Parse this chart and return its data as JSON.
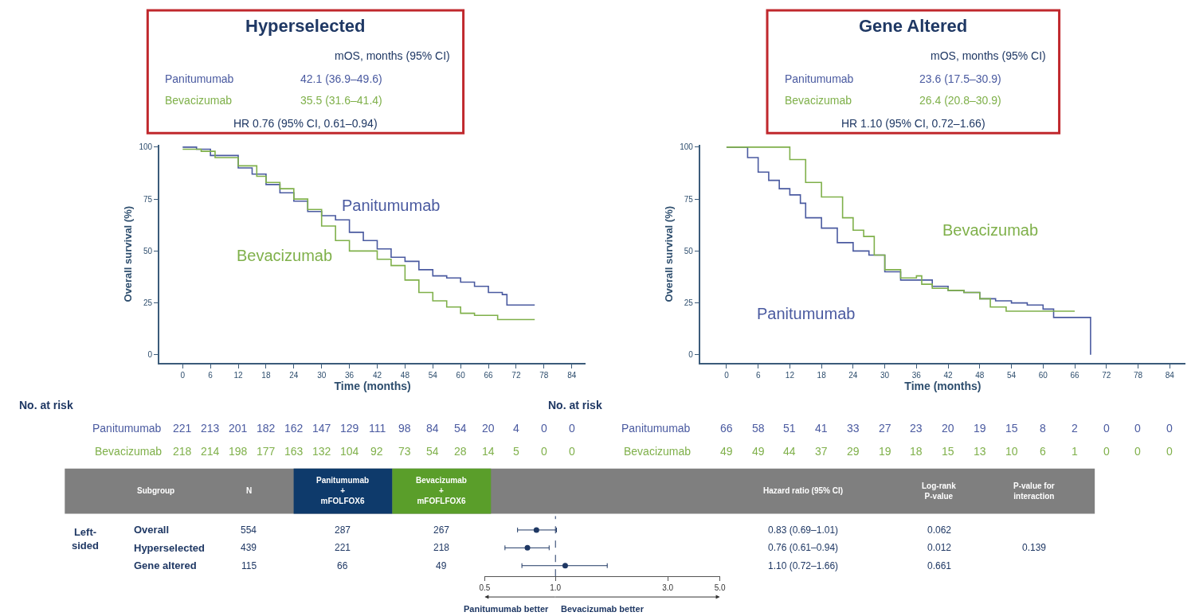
{
  "chart_data": [
    {
      "type": "step",
      "title": "Hyperselected",
      "xlabel": "Time (months)",
      "ylabel": "Overall survival (%)",
      "xlim": [
        -5,
        87
      ],
      "ylim": [
        -4,
        101
      ],
      "xticks": [
        0,
        6,
        12,
        18,
        24,
        30,
        36,
        42,
        48,
        54,
        60,
        66,
        72,
        78,
        84
      ],
      "yticks": [
        0,
        25,
        50,
        75,
        100
      ],
      "series": [
        {
          "name": "Panitumumab",
          "color": "#4a5aa0",
          "x": [
            0,
            3,
            6,
            12,
            15,
            18,
            21,
            24,
            27,
            30,
            33,
            36,
            39,
            42,
            45,
            48,
            51,
            54,
            57,
            60,
            63,
            66,
            69,
            70,
            76
          ],
          "values": [
            100,
            99,
            96,
            90,
            87,
            82,
            78,
            74,
            69,
            67,
            65,
            59,
            55,
            51,
            47,
            45,
            41,
            38,
            37,
            35,
            33,
            30,
            29,
            24,
            24
          ]
        },
        {
          "name": "Bevacizumab",
          "color": "#7fb04a",
          "x": [
            0,
            4,
            7,
            12,
            16,
            18,
            21,
            24,
            27,
            30,
            33,
            36,
            42,
            45,
            48,
            51,
            54,
            57,
            60,
            63,
            66,
            68,
            76
          ],
          "values": [
            99,
            98,
            95,
            91,
            86,
            83,
            80,
            75,
            70,
            62,
            55,
            50,
            46,
            43,
            36,
            30,
            26,
            23,
            20,
            19,
            19,
            17,
            17
          ]
        }
      ],
      "annotations": [
        "mOS, months (95% CI)",
        "Panitumumab",
        "42.1 (36.9–49.6)",
        "Bevacizumab",
        "35.5 (31.6–41.4)",
        "HR 0.76 (95% CI, 0.61–0.94)",
        "No. at risk",
        "Panitumumab",
        "221",
        "213",
        "201",
        "182",
        "162",
        "147",
        "129",
        "111",
        "98",
        "84",
        "54",
        "20",
        "4",
        "0",
        "0",
        "Bevacizumab",
        "218",
        "214",
        "198",
        "177",
        "163",
        "132",
        "104",
        "92",
        "73",
        "54",
        "28",
        "14",
        "5",
        "0",
        "0"
      ]
    },
    {
      "type": "step",
      "title": "Gene Altered",
      "xlabel": "Time (months)",
      "ylabel": "Overall survival (%)",
      "xlim": [
        -5,
        87
      ],
      "ylim": [
        -4,
        101
      ],
      "xticks": [
        0,
        6,
        12,
        18,
        24,
        30,
        36,
        42,
        48,
        54,
        60,
        66,
        72,
        78,
        84
      ],
      "yticks": [
        0,
        25,
        50,
        75,
        100
      ],
      "series": [
        {
          "name": "Panitumumab",
          "color": "#4a5aa0",
          "x": [
            0,
            3,
            4,
            6,
            8,
            10,
            12,
            14,
            15,
            18,
            21,
            24,
            27,
            30,
            33,
            36,
            39,
            42,
            45,
            48,
            51,
            54,
            57,
            60,
            62,
            69,
            69
          ],
          "values": [
            100,
            100,
            95,
            88,
            84,
            80,
            77,
            73,
            66,
            61,
            54,
            50,
            48,
            40,
            36,
            36,
            33,
            31,
            30,
            27,
            26,
            25,
            24,
            22,
            18,
            18,
            0
          ]
        },
        {
          "name": "Bevacizumab",
          "color": "#7fb04a",
          "x": [
            0,
            9,
            12,
            15,
            18,
            20,
            22,
            24,
            26,
            28,
            30,
            33,
            36,
            37,
            39,
            42,
            45,
            48,
            50,
            53,
            60,
            66
          ],
          "values": [
            100,
            100,
            94,
            83,
            76,
            76,
            66,
            60,
            57,
            48,
            41,
            37,
            38,
            34,
            32,
            31,
            30,
            27,
            23,
            21,
            21,
            21
          ]
        }
      ],
      "annotations": [
        "mOS, months (95% CI)",
        "Panitumumab",
        "23.6 (17.5–30.9)",
        "Bevacizumab",
        "26.4 (20.8–30.9)",
        "HR 1.10 (95% CI, 0.72–1.66)",
        "No. at risk",
        "Panitumumab",
        "66",
        "58",
        "51",
        "41",
        "33",
        "27",
        "23",
        "20",
        "19",
        "15",
        "8",
        "2",
        "0",
        "0",
        "0",
        "Bevacizumab",
        "49",
        "49",
        "44",
        "37",
        "29",
        "19",
        "18",
        "15",
        "13",
        "10",
        "6",
        "1",
        "0",
        "0",
        "0"
      ]
    },
    {
      "type": "scatter",
      "categories": [
        "Overall",
        "Hyperselected",
        "Gene altered"
      ],
      "orientation": "horizontal",
      "log": "x",
      "xlim": [
        0.5,
        5
      ],
      "xticks": [
        {
          "value": 0.5,
          "label": "0.5"
        },
        {
          "value": 1,
          "label": "1.0"
        },
        {
          "value": 3,
          "label": "3.0"
        },
        {
          "value": 5,
          "label": "5.0"
        }
      ],
      "tick_labels": "x",
      "marker": "circle",
      "series": [
        {
          "color": "#1f3864",
          "values": [
            0.83,
            0.76,
            1.1
          ],
          "errors": [
            [
              0.69,
              1.01
            ],
            [
              0.61,
              0.94
            ],
            [
              0.72,
              1.66
            ]
          ]
        }
      ],
      "ref_lines": [
        {
          "axis": "x",
          "value": 1,
          "line_style": "dashed",
          "color": "#1f3864"
        }
      ],
      "annotations": [
        "Subgroup",
        "N",
        "Panitumumab\n+\nmFOLFOX6",
        "Bevacizumab\n+\nmFOFLFOX6",
        "Hazard ratio (95% CI)",
        "Log-rank\nP-value",
        "P-value for\ninteraction",
        "Left-\nsided",
        "554",
        "287",
        "267",
        "0.83 (0.69–1.01)",
        "0.062",
        "439",
        "221",
        "218",
        "0.76 (0.61–0.94)",
        "0.012",
        "115",
        "66",
        "49",
        "1.10 (0.72–1.66)",
        "0.661",
        "0.139",
        "Panitumumab better",
        "Bevacizumab better"
      ]
    }
  ]
}
